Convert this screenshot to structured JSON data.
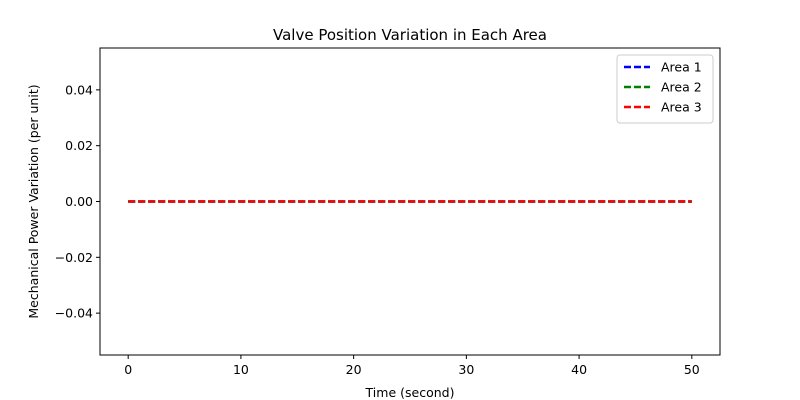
{
  "chart_data": {
    "type": "line",
    "title": "Valve Position Variation in Each Area",
    "xlabel": "Time (second)",
    "ylabel": "Mechanical Power Variation (per unit)",
    "xlim": [
      -2.5,
      52.5
    ],
    "ylim": [
      -0.055,
      0.055
    ],
    "xticks": [
      0,
      10,
      20,
      30,
      40,
      50
    ],
    "yticks": [
      -0.04,
      -0.02,
      0.0,
      0.02,
      0.04
    ],
    "xtick_labels": [
      "0",
      "10",
      "20",
      "30",
      "40",
      "50"
    ],
    "ytick_labels": [
      "−0.04",
      "−0.02",
      "0.00",
      "0.02",
      "0.04"
    ],
    "grid": false,
    "legend_position": "top-right",
    "series": [
      {
        "name": "Area 1",
        "color": "#0000ff",
        "style": "dashed",
        "x": [
          0,
          50
        ],
        "y": [
          0,
          0
        ]
      },
      {
        "name": "Area 2",
        "color": "#008000",
        "style": "dashed",
        "x": [
          0,
          50
        ],
        "y": [
          0,
          0
        ]
      },
      {
        "name": "Area 3",
        "color": "#ff0000",
        "style": "dashed",
        "x": [
          0,
          50
        ],
        "y": [
          0,
          0
        ]
      }
    ]
  }
}
